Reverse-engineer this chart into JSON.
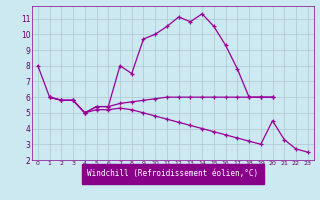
{
  "xlabel": "Windchill (Refroidissement éolien,°C)",
  "bg_color": "#cce8f0",
  "grid_color": "#b0c8d0",
  "line_color": "#990099",
  "xlim": [
    -0.5,
    23.5
  ],
  "ylim": [
    2,
    11.8
  ],
  "yticks": [
    2,
    3,
    4,
    5,
    6,
    7,
    8,
    9,
    10,
    11
  ],
  "xticks": [
    0,
    1,
    2,
    3,
    4,
    5,
    6,
    7,
    8,
    9,
    10,
    11,
    12,
    13,
    14,
    15,
    16,
    17,
    18,
    19,
    20,
    21,
    22,
    23
  ],
  "series": [
    {
      "x": [
        0,
        1,
        2,
        3,
        4,
        5,
        6,
        7,
        8,
        9,
        10,
        11,
        12,
        13,
        14,
        15,
        16,
        17,
        18,
        19,
        20
      ],
      "y": [
        8.0,
        6.0,
        5.8,
        5.8,
        5.0,
        5.4,
        5.4,
        8.0,
        7.5,
        9.7,
        10.0,
        10.5,
        11.1,
        10.8,
        11.3,
        10.5,
        9.3,
        7.8,
        6.0,
        6.0,
        6.0
      ]
    },
    {
      "x": [
        1,
        2,
        3,
        4,
        5,
        6,
        7,
        8,
        9,
        10,
        11,
        12,
        13,
        14,
        15,
        16,
        17,
        18,
        19,
        20
      ],
      "y": [
        6.0,
        5.8,
        5.8,
        5.0,
        5.4,
        5.4,
        5.6,
        5.7,
        5.8,
        5.9,
        6.0,
        6.0,
        6.0,
        6.0,
        6.0,
        6.0,
        6.0,
        6.0,
        6.0,
        6.0
      ]
    },
    {
      "x": [
        1,
        2,
        3,
        4,
        5,
        6,
        7,
        8,
        9,
        10,
        11,
        12,
        13,
        14,
        15,
        16,
        17,
        18,
        19,
        20,
        21,
        22,
        23
      ],
      "y": [
        6.0,
        5.8,
        5.8,
        5.0,
        5.2,
        5.2,
        5.3,
        5.2,
        5.0,
        4.8,
        4.6,
        4.4,
        4.2,
        4.0,
        3.8,
        3.6,
        3.4,
        3.2,
        3.0,
        4.5,
        3.3,
        2.7,
        2.5
      ]
    }
  ]
}
